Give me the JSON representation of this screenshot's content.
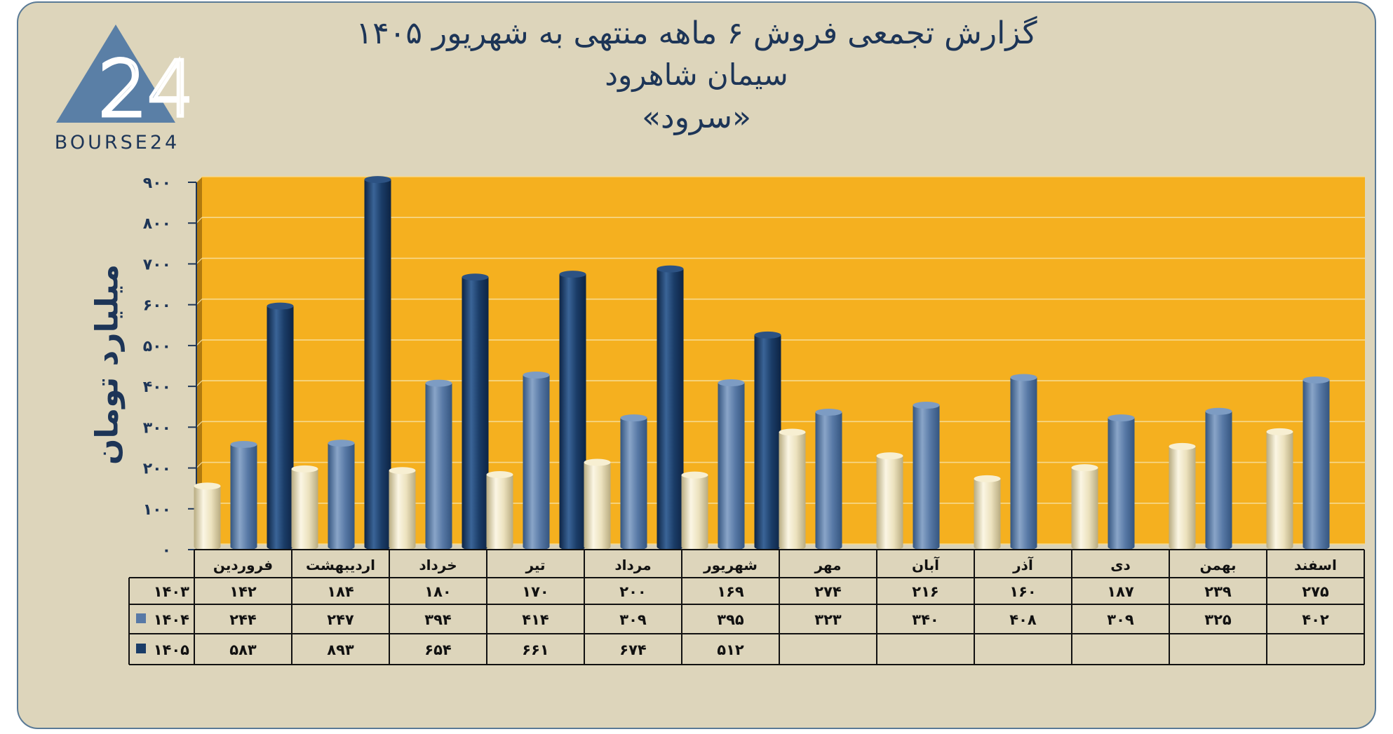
{
  "titles": {
    "line1": "گزارش تجمعی فروش ۶ ماهه منتهی به شهریور ۱۴۰۵",
    "line2": "سیمان شاهرود",
    "line3": "«سرود»"
  },
  "logo": {
    "text": "BOURSE24",
    "mark": "24"
  },
  "colors": {
    "plot_bg": "#f5b01f",
    "frame_bg": "#ddd5bb",
    "series_1403": "#ece2be",
    "series_1404": "#5879a6",
    "series_1405": "#1a3c67",
    "text": "#1d3557"
  },
  "chart_data": {
    "type": "bar",
    "ylabel": "میلیارد تومان",
    "ylim": [
      0,
      900
    ],
    "yticks": [
      0,
      100,
      200,
      300,
      400,
      500,
      600,
      700,
      800,
      900
    ],
    "ytick_labels": [
      "۰",
      "۱۰۰",
      "۲۰۰",
      "۳۰۰",
      "۴۰۰",
      "۵۰۰",
      "۶۰۰",
      "۷۰۰",
      "۸۰۰",
      "۹۰۰"
    ],
    "grid": true,
    "categories": [
      "فروردین",
      "اردیبهشت",
      "خرداد",
      "تیر",
      "مرداد",
      "شهریور",
      "مهر",
      "آبان",
      "آذر",
      "دی",
      "بهمن",
      "اسفند"
    ],
    "series": [
      {
        "name": "۱۴۰۳",
        "values": [
          142,
          184,
          180,
          170,
          200,
          169,
          274,
          216,
          160,
          187,
          239,
          275
        ],
        "labels": [
          "۱۴۲",
          "۱۸۴",
          "۱۸۰",
          "۱۷۰",
          "۲۰۰",
          "۱۶۹",
          "۲۷۴",
          "۲۱۶",
          "۱۶۰",
          "۱۸۷",
          "۲۳۹",
          "۲۷۵"
        ]
      },
      {
        "name": "۱۴۰۴",
        "values": [
          244,
          247,
          394,
          414,
          309,
          395,
          323,
          340,
          408,
          309,
          325,
          402
        ],
        "labels": [
          "۲۴۴",
          "۲۴۷",
          "۳۹۴",
          "۴۱۴",
          "۳۰۹",
          "۳۹۵",
          "۳۲۳",
          "۳۴۰",
          "۴۰۸",
          "۳۰۹",
          "۳۲۵",
          "۴۰۲"
        ]
      },
      {
        "name": "۱۴۰۵",
        "values": [
          583,
          893,
          654,
          661,
          674,
          512,
          null,
          null,
          null,
          null,
          null,
          null
        ],
        "labels": [
          "۵۸۳",
          "۸۹۳",
          "۶۵۴",
          "۶۶۱",
          "۶۷۴",
          "۵۱۲",
          "",
          "",
          "",
          "",
          "",
          ""
        ]
      }
    ]
  }
}
